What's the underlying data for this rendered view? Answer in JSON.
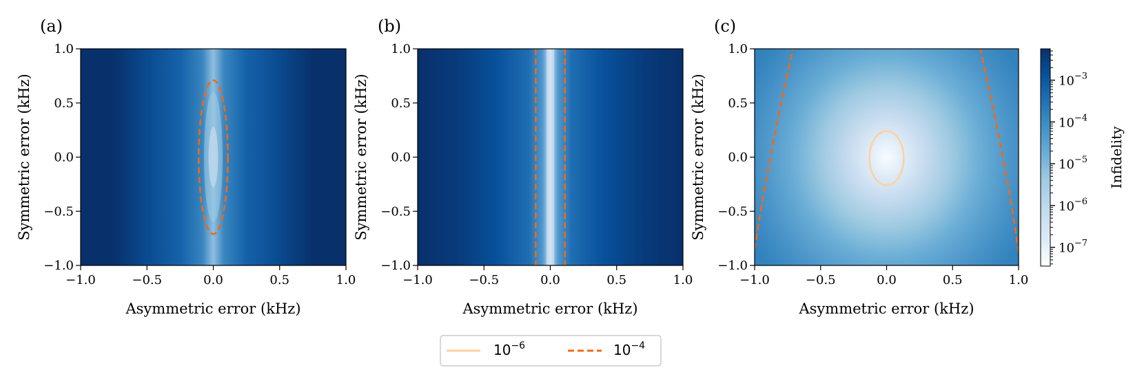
{
  "chart_data": [
    {
      "type": "heatmap",
      "panel_label": "(a)",
      "xlabel": "Asymmetric error (kHz)",
      "ylabel": "Symmetric error (kHz)",
      "xlim": [
        -1.0,
        1.0
      ],
      "ylim": [
        -1.0,
        1.0
      ],
      "xticks": [
        "−1.0",
        "−0.5",
        "0.0",
        "0.5",
        "1.0"
      ],
      "yticks": [
        "−1.0",
        "−0.5",
        "0.0",
        "0.5",
        "1.0"
      ],
      "min_infidelity_at": [
        0.0,
        0.0
      ],
      "contours": [
        {
          "level": "1e-4",
          "shape": "ellipse",
          "center": [
            0.0,
            0.0
          ],
          "x_halfwidth": 0.11,
          "y_halfwidth": 0.71
        }
      ]
    },
    {
      "type": "heatmap",
      "panel_label": "(b)",
      "xlabel": "Asymmetric error (kHz)",
      "ylabel": "Symmetric error (kHz)",
      "xlim": [
        -1.0,
        1.0
      ],
      "ylim": [
        -1.0,
        1.0
      ],
      "xticks": [
        "−1.0",
        "−0.5",
        "0.0",
        "0.5",
        "1.0"
      ],
      "yticks": [
        "−1.0",
        "−0.5",
        "0.0",
        "0.5",
        "1.0"
      ],
      "min_infidelity_at": [
        0.0,
        0.0
      ],
      "contours": [
        {
          "level": "1e-4",
          "shape": "vertical-lines",
          "x_positions": [
            -0.11,
            0.11
          ]
        }
      ]
    },
    {
      "type": "heatmap",
      "panel_label": "(c)",
      "xlabel": "Asymmetric error (kHz)",
      "ylabel": "Symmetric error (kHz)",
      "xlim": [
        -1.0,
        1.0
      ],
      "ylim": [
        -1.0,
        1.0
      ],
      "xticks": [
        "−1.0",
        "−0.5",
        "0.0",
        "0.5",
        "1.0"
      ],
      "yticks": [
        "−1.0",
        "−0.5",
        "0.0",
        "0.5",
        "1.0"
      ],
      "min_infidelity_at": [
        0.0,
        0.0
      ],
      "contours": [
        {
          "level": "1e-6",
          "shape": "ellipse",
          "center": [
            0.0,
            -0.01
          ],
          "x_halfwidth": 0.13,
          "y_halfwidth": 0.25
        },
        {
          "level": "1e-4",
          "shape": "curves",
          "left": [
            [
              -1.0,
              -0.85
            ],
            [
              -0.95,
              -0.45
            ],
            [
              -0.88,
              0.0
            ],
            [
              -0.8,
              0.5
            ],
            [
              -0.71,
              1.0
            ]
          ],
          "right": [
            [
              1.0,
              -0.88
            ],
            [
              0.95,
              -0.45
            ],
            [
              0.88,
              0.0
            ],
            [
              0.8,
              0.5
            ],
            [
              0.71,
              1.0
            ]
          ]
        }
      ]
    }
  ],
  "colorbar": {
    "label": "Infidelity",
    "scale": "log",
    "ticks": [
      {
        "base": "10",
        "exp": "−3",
        "value": 0.001
      },
      {
        "base": "10",
        "exp": "−4",
        "value": 0.0001
      },
      {
        "base": "10",
        "exp": "−5",
        "value": 1e-05
      },
      {
        "base": "10",
        "exp": "−6",
        "value": 1e-06
      },
      {
        "base": "10",
        "exp": "−7",
        "value": 1e-07
      }
    ],
    "colormap": "Blues",
    "colors": [
      "#f7fbff",
      "#deebf7",
      "#c6dbef",
      "#9ecae1",
      "#6baed6",
      "#4292c6",
      "#2171b5",
      "#08519c",
      "#08306b"
    ]
  },
  "legend": {
    "placement": "bottom-center",
    "entries": [
      {
        "base": "10",
        "exp": "−6",
        "color": "#fdd0a2",
        "style": "solid"
      },
      {
        "base": "10",
        "exp": "−4",
        "color": "#f16913",
        "style": "dashed"
      }
    ]
  }
}
